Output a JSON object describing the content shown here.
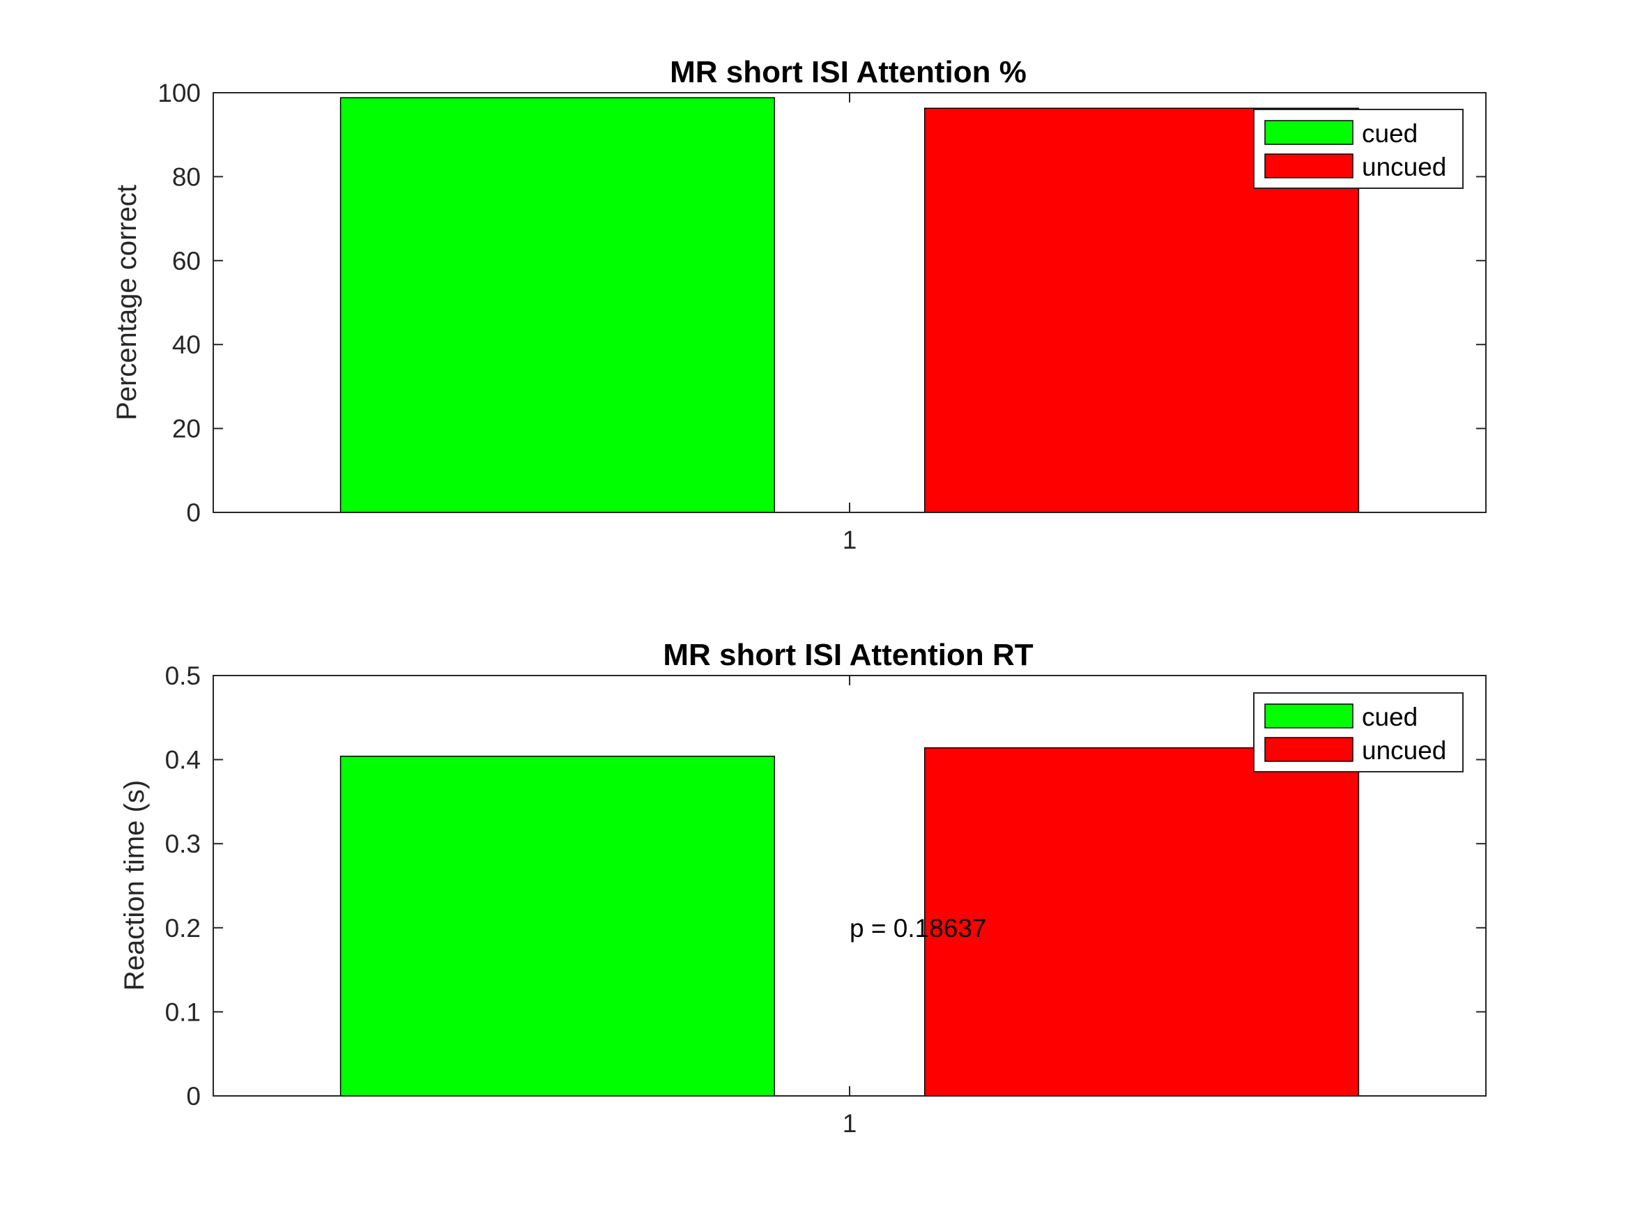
{
  "chart_data": [
    {
      "type": "bar",
      "title": "MR short ISI Attention %",
      "xlabel": "",
      "ylabel": "Percentage correct",
      "categories": [
        "1"
      ],
      "ylim": [
        0,
        100
      ],
      "yticks": [
        "0",
        "20",
        "40",
        "60",
        "80",
        "100"
      ],
      "series": [
        {
          "name": "cued",
          "values": [
            98.8
          ],
          "color": "#00ff00"
        },
        {
          "name": "uncued",
          "values": [
            96.3
          ],
          "color": "#ff0000"
        }
      ],
      "legend": "top-right",
      "grid": false,
      "annotations": []
    },
    {
      "type": "bar",
      "title": "MR short ISI Attention RT",
      "xlabel": "",
      "ylabel": "Reaction time (s)",
      "categories": [
        "1"
      ],
      "ylim": [
        0,
        0.5
      ],
      "yticks": [
        "0",
        "0.1",
        "0.2",
        "0.3",
        "0.4",
        "0.5"
      ],
      "series": [
        {
          "name": "cued",
          "values": [
            0.404
          ],
          "color": "#00ff00"
        },
        {
          "name": "uncued",
          "values": [
            0.414
          ],
          "color": "#ff0000"
        }
      ],
      "legend": "top-right",
      "grid": false,
      "annotations": [
        {
          "text": "p = 0.18637",
          "x": 1,
          "y": 0.2
        }
      ]
    }
  ]
}
